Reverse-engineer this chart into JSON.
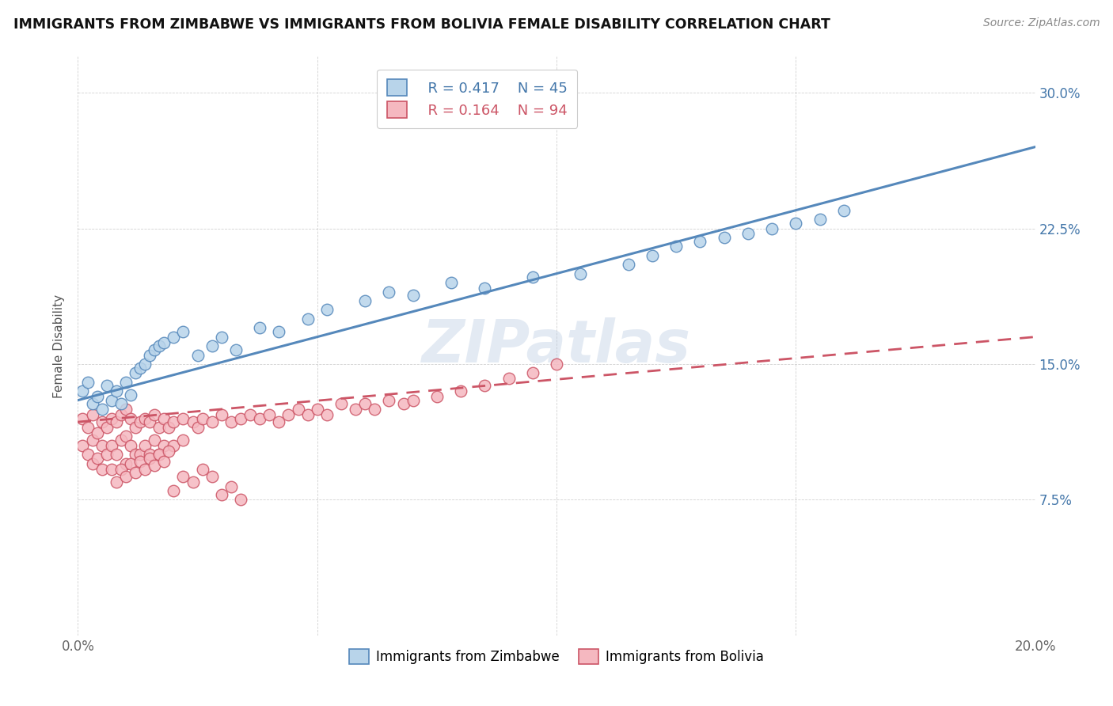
{
  "title": "IMMIGRANTS FROM ZIMBABWE VS IMMIGRANTS FROM BOLIVIA FEMALE DISABILITY CORRELATION CHART",
  "source": "Source: ZipAtlas.com",
  "ylabel": "Female Disability",
  "xlim": [
    0.0,
    0.2
  ],
  "ylim": [
    0.0,
    0.32
  ],
  "x_tick_positions": [
    0.0,
    0.05,
    0.1,
    0.15,
    0.2
  ],
  "x_tick_labels": [
    "0.0%",
    "",
    "",
    "",
    "20.0%"
  ],
  "y_tick_positions": [
    0.0,
    0.075,
    0.15,
    0.225,
    0.3
  ],
  "y_tick_labels": [
    "",
    "7.5%",
    "15.0%",
    "22.5%",
    "30.0%"
  ],
  "zimbabwe_color": "#b8d4ea",
  "zimbabwe_edge": "#5588bb",
  "bolivia_color": "#f5b8c0",
  "bolivia_edge": "#cc5566",
  "legend_R_zimbabwe": "R = 0.417",
  "legend_N_zimbabwe": "N = 45",
  "legend_R_bolivia": "R = 0.164",
  "legend_N_bolivia": "N = 94",
  "legend_color_blue": "#4477aa",
  "legend_color_pink": "#cc5566",
  "watermark": "ZIPatlas",
  "zim_trend_x": [
    0.0,
    0.2
  ],
  "zim_trend_y": [
    0.13,
    0.27
  ],
  "bol_trend_x": [
    0.0,
    0.2
  ],
  "bol_trend_y": [
    0.118,
    0.165
  ],
  "zimbabwe_x": [
    0.001,
    0.002,
    0.003,
    0.004,
    0.005,
    0.006,
    0.007,
    0.008,
    0.009,
    0.01,
    0.011,
    0.012,
    0.013,
    0.014,
    0.015,
    0.016,
    0.017,
    0.018,
    0.02,
    0.022,
    0.025,
    0.028,
    0.03,
    0.033,
    0.038,
    0.042,
    0.048,
    0.052,
    0.06,
    0.065,
    0.07,
    0.078,
    0.085,
    0.095,
    0.105,
    0.115,
    0.12,
    0.125,
    0.13,
    0.135,
    0.14,
    0.145,
    0.15,
    0.155,
    0.16
  ],
  "zimbabwe_y": [
    0.135,
    0.14,
    0.128,
    0.132,
    0.125,
    0.138,
    0.13,
    0.135,
    0.128,
    0.14,
    0.133,
    0.145,
    0.148,
    0.15,
    0.155,
    0.158,
    0.16,
    0.162,
    0.165,
    0.168,
    0.155,
    0.16,
    0.165,
    0.158,
    0.17,
    0.168,
    0.175,
    0.18,
    0.185,
    0.19,
    0.188,
    0.195,
    0.192,
    0.198,
    0.2,
    0.205,
    0.21,
    0.215,
    0.218,
    0.22,
    0.222,
    0.225,
    0.228,
    0.23,
    0.235
  ],
  "bolivia_x": [
    0.001,
    0.001,
    0.002,
    0.002,
    0.003,
    0.003,
    0.003,
    0.004,
    0.004,
    0.005,
    0.005,
    0.005,
    0.006,
    0.006,
    0.007,
    0.007,
    0.007,
    0.008,
    0.008,
    0.009,
    0.009,
    0.01,
    0.01,
    0.01,
    0.011,
    0.011,
    0.012,
    0.012,
    0.013,
    0.013,
    0.014,
    0.014,
    0.015,
    0.015,
    0.016,
    0.016,
    0.017,
    0.017,
    0.018,
    0.018,
    0.019,
    0.02,
    0.02,
    0.022,
    0.022,
    0.024,
    0.025,
    0.026,
    0.028,
    0.03,
    0.032,
    0.034,
    0.036,
    0.038,
    0.04,
    0.042,
    0.044,
    0.046,
    0.048,
    0.05,
    0.052,
    0.055,
    0.058,
    0.06,
    0.062,
    0.065,
    0.068,
    0.07,
    0.075,
    0.08,
    0.085,
    0.09,
    0.095,
    0.1,
    0.008,
    0.009,
    0.01,
    0.011,
    0.012,
    0.013,
    0.014,
    0.015,
    0.016,
    0.017,
    0.018,
    0.019,
    0.02,
    0.022,
    0.024,
    0.026,
    0.028,
    0.03,
    0.032,
    0.034
  ],
  "bolivia_y": [
    0.12,
    0.105,
    0.115,
    0.1,
    0.122,
    0.108,
    0.095,
    0.112,
    0.098,
    0.118,
    0.105,
    0.092,
    0.115,
    0.1,
    0.12,
    0.105,
    0.092,
    0.118,
    0.1,
    0.122,
    0.108,
    0.125,
    0.11,
    0.095,
    0.12,
    0.105,
    0.115,
    0.1,
    0.118,
    0.1,
    0.12,
    0.105,
    0.118,
    0.1,
    0.122,
    0.108,
    0.115,
    0.1,
    0.12,
    0.105,
    0.115,
    0.118,
    0.105,
    0.12,
    0.108,
    0.118,
    0.115,
    0.12,
    0.118,
    0.122,
    0.118,
    0.12,
    0.122,
    0.12,
    0.122,
    0.118,
    0.122,
    0.125,
    0.122,
    0.125,
    0.122,
    0.128,
    0.125,
    0.128,
    0.125,
    0.13,
    0.128,
    0.13,
    0.132,
    0.135,
    0.138,
    0.142,
    0.145,
    0.15,
    0.085,
    0.092,
    0.088,
    0.095,
    0.09,
    0.096,
    0.092,
    0.098,
    0.094,
    0.1,
    0.096,
    0.102,
    0.08,
    0.088,
    0.085,
    0.092,
    0.088,
    0.078,
    0.082,
    0.075
  ]
}
